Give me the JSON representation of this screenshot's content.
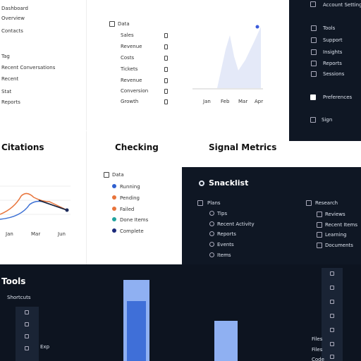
{
  "nav": {
    "items": [
      "Dashboard",
      "Overview",
      "Contacts",
      "Tag",
      "Recent Conversations",
      "Recent",
      "Stat",
      "Reports"
    ]
  },
  "data_panel": {
    "header": "Data",
    "items": [
      "Sales",
      "Revenue",
      "Costs",
      "Tickets",
      "Revenue",
      "Conversion",
      "Growth"
    ],
    "chart_labels": [
      "Jan",
      "Feb",
      "Mar",
      "Apr"
    ]
  },
  "account": {
    "header": "Account Settings",
    "items": [
      "Tools",
      "Support",
      "Insights",
      "Reports",
      "Sessions"
    ],
    "preferences": "Preferences",
    "sign": "Sign"
  },
  "citations": {
    "title": "Citations",
    "labels": [
      "Jan",
      "Mar",
      "Jun"
    ]
  },
  "checking": {
    "title": "Checking",
    "legend": "Data",
    "items": [
      "Running",
      "Pending",
      "Failed",
      "Done Items",
      "Complete"
    ]
  },
  "signal": {
    "title": "Signal Metrics"
  },
  "snacklist": {
    "title": "Snacklist",
    "left_header": "Plans",
    "left_items": [
      "Tips",
      "Recent Activity",
      "Reports",
      "Events",
      "Items"
    ],
    "right_header": "Research",
    "right_items": [
      "Reviews",
      "Recent Items",
      "Learning",
      "Documents"
    ]
  },
  "tools": {
    "title": "Tools",
    "subtitle": "Shortcuts",
    "exp": "Exp",
    "files": [
      "Files",
      "Files",
      "Code"
    ]
  }
}
